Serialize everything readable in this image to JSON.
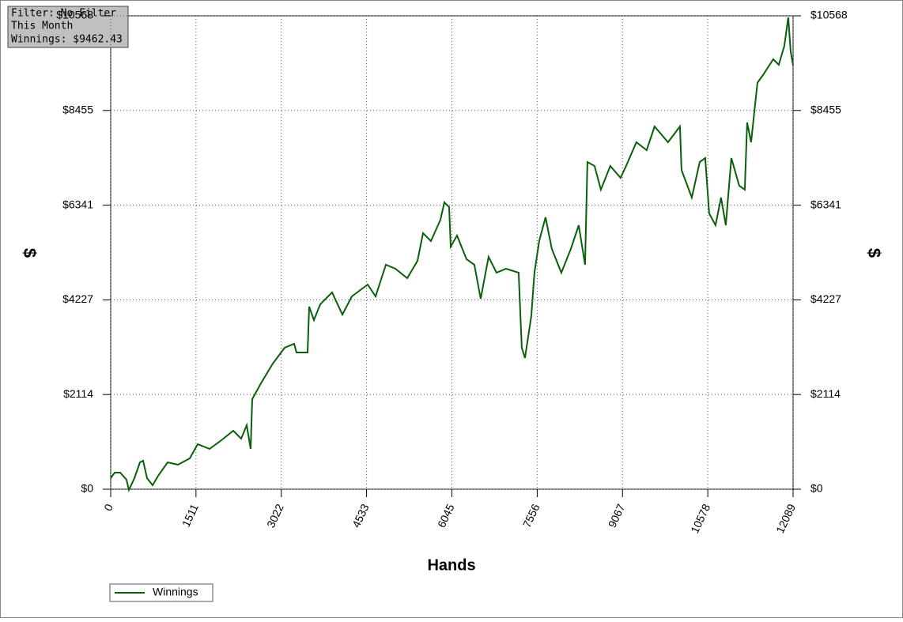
{
  "chart_data": {
    "type": "line",
    "annotations": [
      "Filter: No Filter",
      "This Month",
      "Winnings: $9462.43"
    ],
    "x_label": "Hands",
    "y_label": "$",
    "xlim": [
      0,
      12089
    ],
    "xticks": [
      0,
      1511,
      3022,
      4533,
      6045,
      7556,
      9067,
      10578,
      12089
    ],
    "ylim": [
      0,
      10568
    ],
    "yticks": [
      {
        "value": 0,
        "label": "$0"
      },
      {
        "value": 2114,
        "label": "$2114"
      },
      {
        "value": 4227,
        "label": "$4227"
      },
      {
        "value": 6341,
        "label": "$6341"
      },
      {
        "value": 8455,
        "label": "$8455"
      },
      {
        "value": 10568,
        "label": "$10568"
      }
    ],
    "grid": true,
    "legend": "bottom-left",
    "x": [
      0,
      70,
      168,
      280,
      322,
      420,
      518,
      574,
      644,
      742,
      840,
      1009,
      1191,
      1401,
      1541,
      1751,
      1961,
      2171,
      2311,
      2409,
      2479,
      2507,
      2661,
      2872,
      3082,
      3250,
      3292,
      3488,
      3516,
      3600,
      3712,
      3922,
      4104,
      4272,
      4552,
      4693,
      4875,
      5043,
      5253,
      5435,
      5533,
      5673,
      5841,
      5911,
      5995,
      6023,
      6135,
      6303,
      6443,
      6555,
      6695,
      6835,
      7003,
      7227,
      7283,
      7339,
      7451,
      7507,
      7591,
      7703,
      7815,
      7983,
      8151,
      8291,
      8403,
      8445,
      8571,
      8683,
      8851,
      9033,
      9131,
      9313,
      9495,
      9635,
      9873,
      10085,
      10113,
      10295,
      10435,
      10533,
      10603,
      10715,
      10813,
      10897,
      10995,
      11135,
      11233,
      11275,
      11345,
      11457,
      11555,
      11737,
      11835,
      11934,
      12004,
      12046,
      12089
    ],
    "series": [
      {
        "name": "Winnings",
        "color": "#0a5f0a",
        "values": [
          247,
          370,
          370,
          212,
          -18,
          247,
          600,
          635,
          247,
          88,
          300,
          600,
          547,
          688,
          1006,
          900,
          1094,
          1306,
          1129,
          1429,
          900,
          2011,
          2364,
          2805,
          3158,
          3246,
          3052,
          3052,
          4076,
          3776,
          4128,
          4393,
          3899,
          4305,
          4570,
          4305,
          5011,
          4922,
          4711,
          5099,
          5716,
          5540,
          6016,
          6404,
          6299,
          5416,
          5663,
          5134,
          5011,
          4252,
          5187,
          4834,
          4922,
          4834,
          3158,
          2929,
          3864,
          4834,
          5540,
          6069,
          5363,
          4834,
          5363,
          5893,
          5011,
          7304,
          7216,
          6687,
          7216,
          6952,
          7216,
          7745,
          7569,
          8098,
          7745,
          8098,
          7128,
          6511,
          7304,
          7392,
          6157,
          5893,
          6511,
          5893,
          7392,
          6775,
          6687,
          8186,
          7745,
          9072,
          9245,
          9598,
          9474,
          9898,
          10533,
          9774,
          9462
        ]
      }
    ]
  }
}
